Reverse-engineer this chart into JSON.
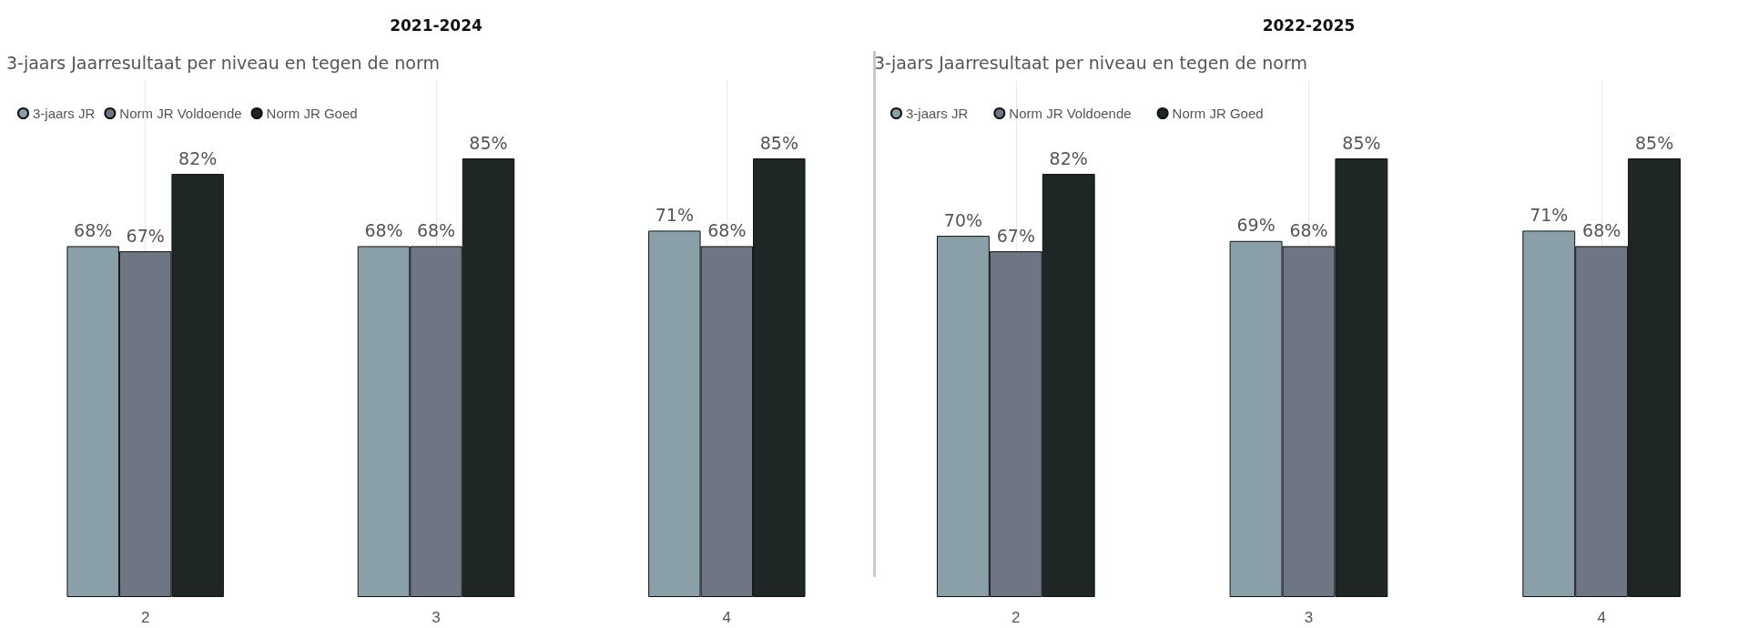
{
  "chart_data": [
    {
      "type": "bar",
      "title": "2021-2024",
      "subtitle": "3-jaars Jaarresultaat per niveau en tegen de norm",
      "categories": [
        "2",
        "3",
        "4"
      ],
      "series": [
        {
          "name": "3-jaars JR",
          "color": "#8aa0a9",
          "values": [
            68,
            68,
            71
          ],
          "value_labels": [
            "68%",
            "68%",
            "71%"
          ]
        },
        {
          "name": "Norm JR Voldoende",
          "color": "#6e7684",
          "values": [
            67,
            68,
            68
          ],
          "value_labels": [
            "67%",
            "68%",
            "68%"
          ]
        },
        {
          "name": "Norm JR Goed",
          "color": "#1f2626",
          "values": [
            82,
            85,
            85
          ],
          "value_labels": [
            "82%",
            "85%",
            "85%"
          ]
        }
      ],
      "legend": "top left",
      "grid": "x",
      "tick_labels": "x"
    },
    {
      "type": "bar",
      "title": "2022-2025",
      "subtitle": "3-jaars Jaarresultaat per niveau en tegen de norm",
      "categories": [
        "2",
        "3",
        "4"
      ],
      "series": [
        {
          "name": "3-jaars JR",
          "color": "#8aa0a9",
          "values": [
            70,
            69,
            71
          ],
          "value_labels": [
            "70%",
            "69%",
            "71%"
          ]
        },
        {
          "name": "Norm JR Voldoende",
          "color": "#6e7684",
          "values": [
            67,
            68,
            68
          ],
          "value_labels": [
            "67%",
            "68%",
            "68%"
          ]
        },
        {
          "name": "Norm JR Goed",
          "color": "#1f2626",
          "values": [
            82,
            85,
            85
          ],
          "value_labels": [
            "82%",
            "85%",
            "85%"
          ]
        }
      ],
      "legend": "top left",
      "grid": "x",
      "tick_labels": "x"
    }
  ]
}
